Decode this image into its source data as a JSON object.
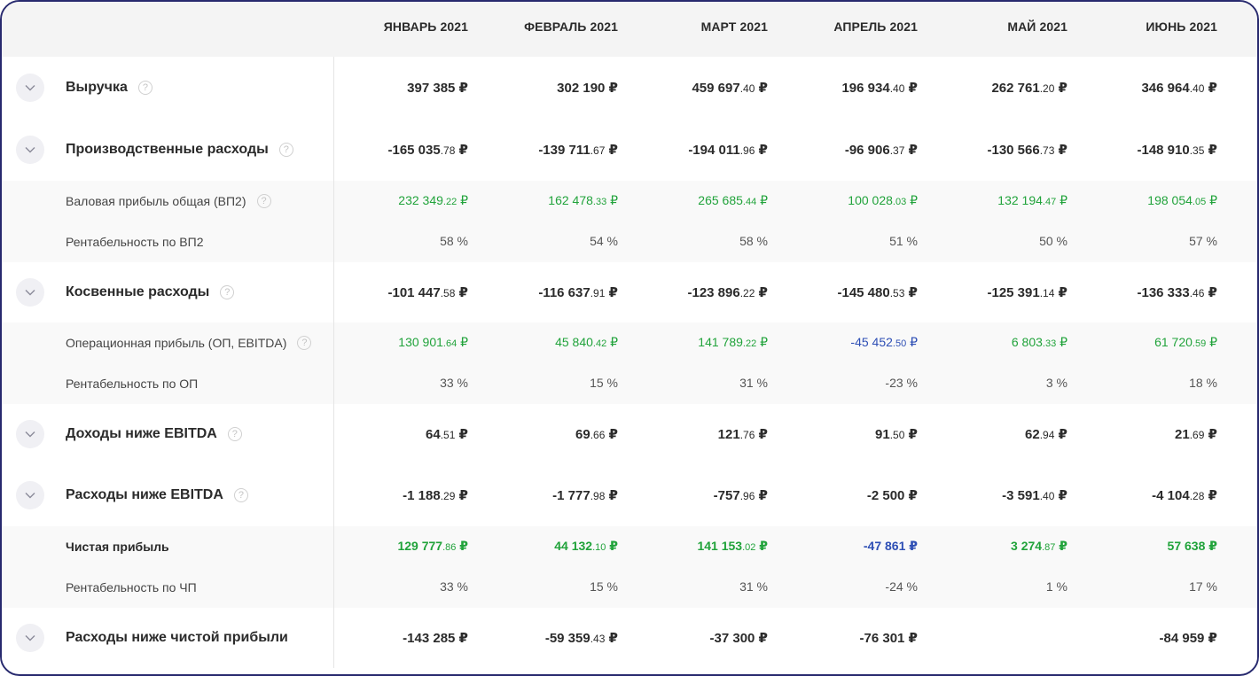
{
  "columns": [
    "ЯНВАРЬ 2021",
    "ФЕВРАЛЬ 2021",
    "МАРТ 2021",
    "АПРЕЛЬ 2021",
    "МАЙ 2021",
    "ИЮНЬ 2021"
  ],
  "colors": {
    "positive": "#21a33b",
    "negative": "#2e4fb5",
    "border": "#27296e"
  },
  "rows": [
    {
      "kind": "main",
      "label": "Выручка",
      "help": true,
      "values": [
        [
          "397 385",
          "",
          " ₽"
        ],
        [
          "302 190",
          "",
          " ₽"
        ],
        [
          "459 697",
          ".40",
          " ₽"
        ],
        [
          "196 934",
          ".40",
          " ₽"
        ],
        [
          "262 761",
          ".20",
          " ₽"
        ],
        [
          "346 964",
          ".40",
          " ₽"
        ]
      ]
    },
    {
      "kind": "main",
      "label": "Производственные расходы",
      "help": true,
      "values": [
        [
          "-165 035",
          ".78",
          " ₽"
        ],
        [
          "-139 711",
          ".67",
          " ₽"
        ],
        [
          "-194 011",
          ".96",
          " ₽"
        ],
        [
          "-96 906",
          ".37",
          " ₽"
        ],
        [
          "-130 566",
          ".73",
          " ₽"
        ],
        [
          "-148 910",
          ".35",
          " ₽"
        ]
      ]
    },
    {
      "kind": "sub",
      "label": "Валовая прибыль общая (ВП2)",
      "help": true,
      "values": [
        [
          "232 349",
          ".22",
          " ₽",
          "pos"
        ],
        [
          "162 478",
          ".33",
          " ₽",
          "pos"
        ],
        [
          "265 685",
          ".44",
          " ₽",
          "pos"
        ],
        [
          "100 028",
          ".03",
          " ₽",
          "pos"
        ],
        [
          "132 194",
          ".47",
          " ₽",
          "pos"
        ],
        [
          "198 054",
          ".05",
          " ₽",
          "pos"
        ]
      ]
    },
    {
      "kind": "sub",
      "label": "Рентабельность по ВП2",
      "help": false,
      "values": [
        [
          "58 %",
          "",
          ""
        ],
        [
          "54 %",
          "",
          ""
        ],
        [
          "58 %",
          "",
          ""
        ],
        [
          "51 %",
          "",
          ""
        ],
        [
          "50 %",
          "",
          ""
        ],
        [
          "57 %",
          "",
          ""
        ]
      ]
    },
    {
      "kind": "main",
      "label": "Косвенные расходы",
      "help": true,
      "values": [
        [
          "-101 447",
          ".58",
          " ₽"
        ],
        [
          "-116 637",
          ".91",
          " ₽"
        ],
        [
          "-123 896",
          ".22",
          " ₽"
        ],
        [
          "-145 480",
          ".53",
          " ₽"
        ],
        [
          "-125 391",
          ".14",
          " ₽"
        ],
        [
          "-136 333",
          ".46",
          " ₽"
        ]
      ]
    },
    {
      "kind": "sub",
      "label": "Операционная прибыль (ОП, EBITDA)",
      "help": true,
      "values": [
        [
          "130 901",
          ".64",
          " ₽",
          "pos"
        ],
        [
          "45 840",
          ".42",
          " ₽",
          "pos"
        ],
        [
          "141 789",
          ".22",
          " ₽",
          "pos"
        ],
        [
          "-45 452",
          ".50",
          " ₽",
          "neg"
        ],
        [
          "6 803",
          ".33",
          " ₽",
          "pos"
        ],
        [
          "61 720",
          ".59",
          " ₽",
          "pos"
        ]
      ]
    },
    {
      "kind": "sub",
      "label": "Рентабельность по ОП",
      "help": false,
      "values": [
        [
          "33 %",
          "",
          ""
        ],
        [
          "15 %",
          "",
          ""
        ],
        [
          "31 %",
          "",
          ""
        ],
        [
          "-23 %",
          "",
          ""
        ],
        [
          "3 %",
          "",
          ""
        ],
        [
          "18 %",
          "",
          ""
        ]
      ]
    },
    {
      "kind": "main",
      "label": "Доходы ниже EBITDA",
      "help": true,
      "values": [
        [
          "64",
          ".51",
          " ₽"
        ],
        [
          "69",
          ".66",
          " ₽"
        ],
        [
          "121",
          ".76",
          " ₽"
        ],
        [
          "91",
          ".50",
          " ₽"
        ],
        [
          "62",
          ".94",
          " ₽"
        ],
        [
          "21",
          ".69",
          " ₽"
        ]
      ]
    },
    {
      "kind": "main",
      "label": "Расходы ниже EBITDA",
      "help": true,
      "values": [
        [
          "-1 188",
          ".29",
          " ₽"
        ],
        [
          "-1 777",
          ".98",
          " ₽"
        ],
        [
          "-757",
          ".96",
          " ₽"
        ],
        [
          "-2 500",
          "",
          " ₽"
        ],
        [
          "-3 591",
          ".40",
          " ₽"
        ],
        [
          "-4 104",
          ".28",
          " ₽"
        ]
      ]
    },
    {
      "kind": "sub",
      "bold": true,
      "label": "Чистая прибыль",
      "help": false,
      "values": [
        [
          "129 777",
          ".86",
          " ₽",
          "pos"
        ],
        [
          "44 132",
          ".10",
          " ₽",
          "pos"
        ],
        [
          "141 153",
          ".02",
          " ₽",
          "pos"
        ],
        [
          "-47 861",
          "",
          " ₽",
          "neg"
        ],
        [
          "3 274",
          ".87",
          " ₽",
          "pos"
        ],
        [
          "57 638",
          "",
          " ₽",
          "pos"
        ]
      ]
    },
    {
      "kind": "sub",
      "label": "Рентабельность по ЧП",
      "help": false,
      "values": [
        [
          "33 %",
          "",
          ""
        ],
        [
          "15 %",
          "",
          ""
        ],
        [
          "31 %",
          "",
          ""
        ],
        [
          "-24 %",
          "",
          ""
        ],
        [
          "1 %",
          "",
          ""
        ],
        [
          "17 %",
          "",
          ""
        ]
      ]
    },
    {
      "kind": "main",
      "label": "Расходы ниже чистой прибыли",
      "help": false,
      "values": [
        [
          "-143 285",
          "",
          " ₽"
        ],
        [
          "-59 359",
          ".43",
          " ₽"
        ],
        [
          "-37 300",
          "",
          " ₽"
        ],
        [
          "-76 301",
          "",
          " ₽"
        ],
        [
          "",
          "",
          ""
        ],
        [
          "-84 959",
          "",
          " ₽"
        ]
      ]
    }
  ]
}
